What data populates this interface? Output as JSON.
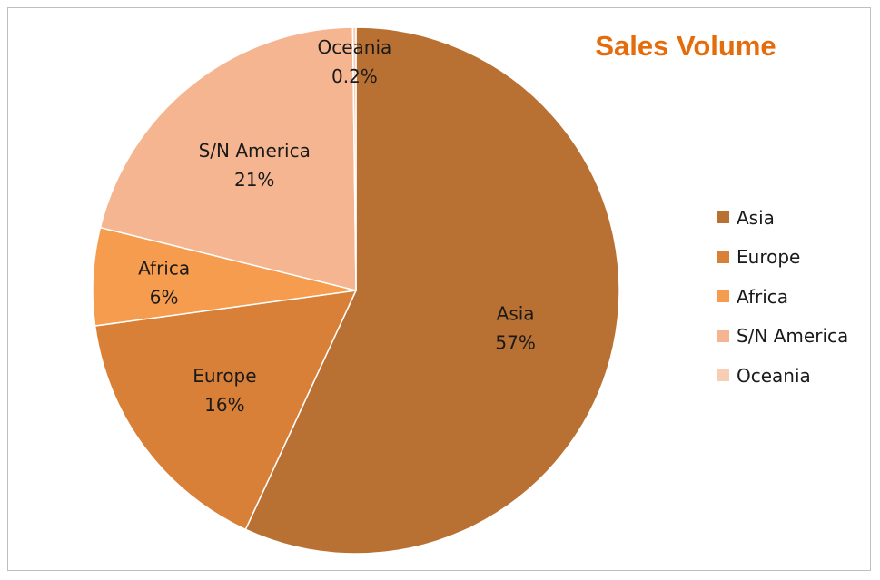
{
  "chart_data": {
    "type": "pie",
    "title": "Sales Volume",
    "categories": [
      "Asia",
      "Europe",
      "Africa",
      "S/N America",
      "Oceania"
    ],
    "values": [
      57,
      16,
      6,
      21,
      0.2
    ],
    "labels": [
      "57%",
      "16%",
      "6%",
      "21%",
      "0.2%"
    ],
    "colors": [
      "#b87033",
      "#d98038",
      "#f59c4e",
      "#f5b590",
      "#f7cdb4"
    ],
    "legend_position": "right"
  }
}
